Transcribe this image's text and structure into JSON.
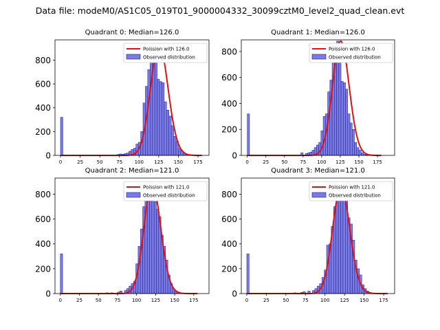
{
  "title": "Data file: modeM0/AS1C05_019T01_9000004332_30099cztM0_level2_quad_clean.evt",
  "chart_data": [
    {
      "type": "bar",
      "subtitle": "Quadrant 0: Median=126.0",
      "median": 126.0,
      "xlim": [
        -7,
        189
      ],
      "ylim": [
        0,
        970
      ],
      "xticks": [
        0,
        25,
        50,
        75,
        100,
        125,
        150,
        175
      ],
      "yticks": [
        0,
        200,
        400,
        600,
        800
      ],
      "bin_width": 3,
      "bins_start": [
        0,
        72,
        75,
        78,
        81,
        84,
        87,
        90,
        93,
        96,
        99,
        102,
        105,
        108,
        111,
        114,
        117,
        120,
        123,
        126,
        129,
        132,
        135,
        138,
        141,
        144,
        147,
        150,
        153,
        156,
        159
      ],
      "values": [
        320,
        8,
        12,
        10,
        15,
        20,
        35,
        50,
        60,
        95,
        110,
        200,
        440,
        580,
        720,
        790,
        930,
        850,
        640,
        620,
        610,
        450,
        380,
        330,
        250,
        160,
        120,
        60,
        40,
        20,
        8
      ],
      "legend": [
        "Poission with 126.0",
        "Observed distribution"
      ]
    },
    {
      "type": "bar",
      "subtitle": "Quadrant 1: Median=126.0",
      "median": 126.0,
      "xlim": [
        -8,
        198
      ],
      "ylim": [
        0,
        890
      ],
      "xticks": [
        0,
        25,
        50,
        75,
        100,
        125,
        150,
        175
      ],
      "yticks": [
        0,
        200,
        400,
        600,
        800
      ],
      "bin_width": 3,
      "bins_start": [
        0,
        72,
        78,
        81,
        84,
        87,
        90,
        93,
        96,
        99,
        102,
        105,
        108,
        111,
        114,
        117,
        120,
        123,
        126,
        129,
        132,
        135,
        138,
        141,
        144,
        147,
        150,
        153,
        156,
        159
      ],
      "values": [
        320,
        20,
        15,
        20,
        25,
        40,
        60,
        80,
        100,
        190,
        300,
        320,
        490,
        580,
        720,
        760,
        880,
        800,
        570,
        560,
        510,
        320,
        250,
        200,
        100,
        60,
        40,
        20,
        8,
        4
      ],
      "legend": [
        "Poission with 126.0",
        "Observed distribution"
      ]
    },
    {
      "type": "bar",
      "subtitle": "Quadrant 2: Median=121.0",
      "median": 121.0,
      "xlim": [
        -7,
        195
      ],
      "ylim": [
        0,
        930
      ],
      "xticks": [
        0,
        25,
        50,
        75,
        100,
        125,
        150,
        175
      ],
      "yticks": [
        0,
        200,
        400,
        600,
        800
      ],
      "bin_width": 3,
      "bins_start": [
        0,
        60,
        66,
        75,
        78,
        84,
        87,
        90,
        93,
        96,
        99,
        102,
        105,
        108,
        111,
        114,
        117,
        120,
        123,
        126,
        129,
        132,
        135,
        138,
        141,
        144,
        147,
        150,
        153,
        156
      ],
      "values": [
        320,
        6,
        6,
        12,
        20,
        25,
        40,
        60,
        80,
        100,
        240,
        380,
        520,
        700,
        760,
        800,
        880,
        830,
        740,
        680,
        620,
        470,
        380,
        270,
        150,
        80,
        40,
        20,
        10,
        4
      ],
      "legend": [
        "Poission with 121.0",
        "Observed distribution"
      ]
    },
    {
      "type": "bar",
      "subtitle": "Quadrant 3: Median=121.0",
      "median": 121.0,
      "xlim": [
        -7,
        189
      ],
      "ylim": [
        0,
        930
      ],
      "xticks": [
        0,
        25,
        50,
        75,
        100,
        125,
        150,
        175
      ],
      "yticks": [
        0,
        200,
        400,
        600,
        800
      ],
      "bin_width": 3,
      "bins_start": [
        0,
        60,
        69,
        72,
        78,
        84,
        87,
        90,
        93,
        96,
        99,
        102,
        105,
        108,
        111,
        114,
        117,
        120,
        123,
        126,
        129,
        132,
        135,
        138,
        141,
        144,
        147,
        150,
        153,
        156,
        159
      ],
      "values": [
        320,
        6,
        10,
        15,
        20,
        25,
        40,
        60,
        80,
        130,
        190,
        390,
        400,
        540,
        700,
        760,
        800,
        860,
        820,
        760,
        610,
        560,
        430,
        270,
        200,
        150,
        70,
        40,
        20,
        10,
        4
      ],
      "legend": [
        "Poission with 121.0",
        "Observed distribution"
      ]
    }
  ]
}
